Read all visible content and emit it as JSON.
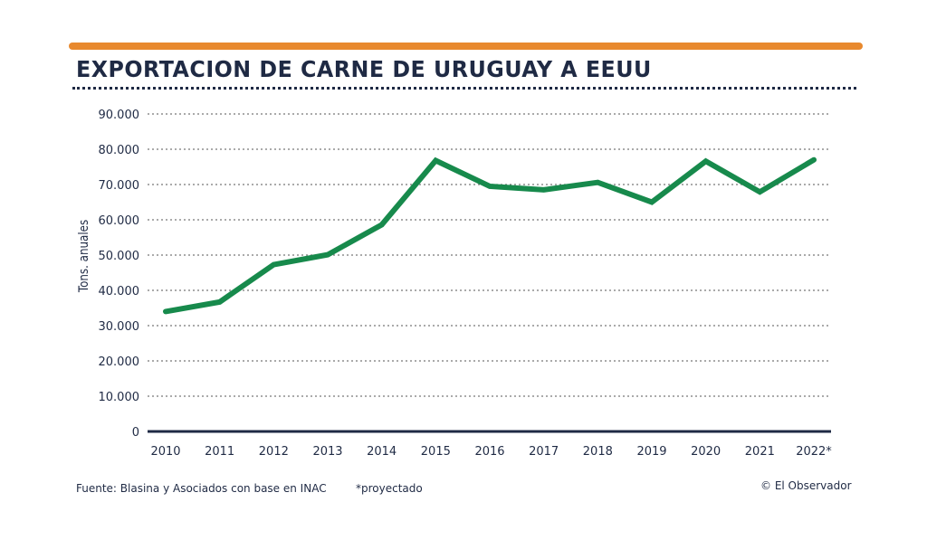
{
  "colors": {
    "accent_bar": "#e8892e",
    "line": "#178a4c",
    "text": "#1f2a44"
  },
  "chart_data": {
    "type": "line",
    "title": "EXPORTACION DE CARNE DE URUGUAY A EEUU",
    "xlabel": "",
    "ylabel": "Tons. anuales",
    "categories": [
      "2010",
      "2011",
      "2012",
      "2013",
      "2014",
      "2015",
      "2016",
      "2017",
      "2018",
      "2019",
      "2020",
      "2021",
      "2022*"
    ],
    "values": [
      34000,
      36700,
      47300,
      50100,
      58600,
      76800,
      69500,
      68500,
      70600,
      65000,
      76600,
      67900,
      77000
    ],
    "ylim": [
      0,
      90000
    ],
    "yticks": [
      0,
      10000,
      20000,
      30000,
      40000,
      50000,
      60000,
      70000,
      80000,
      90000
    ],
    "ytick_labels": [
      "0",
      "10.000",
      "20.000",
      "30.000",
      "40.000",
      "50.000",
      "60.000",
      "70.000",
      "80.000",
      "90.000"
    ],
    "grid": "horizontal dotted",
    "legend": "none"
  },
  "footer": {
    "source": "Fuente: Blasina y Asociados con base en INAC",
    "note": "*proyectado",
    "credit": "© El Observador"
  }
}
